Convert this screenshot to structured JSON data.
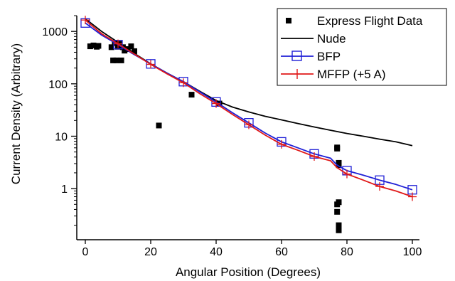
{
  "chart_data": {
    "type": "line",
    "xlabel": "Angular Position (Degrees)",
    "ylabel": "Current Density (Arbitrary)",
    "xlim": [
      0,
      100
    ],
    "ylim": [
      0.14,
      2000
    ],
    "yscale": "log",
    "grid": false,
    "legend_position": "top-right",
    "x_ticks": [
      0,
      20,
      40,
      60,
      80,
      100
    ],
    "x_tick_labels": [
      "0",
      "20",
      "40",
      "60",
      "80",
      "100"
    ],
    "y_ticks": [
      1,
      10,
      100,
      1000
    ],
    "y_tick_labels": [
      "1",
      "10",
      "100",
      "1000"
    ],
    "series": [
      {
        "name": "Express Flight Data",
        "kind": "scatter",
        "marker": "filled-square",
        "color": "#000000",
        "x": [
          1.5,
          2.5,
          3.5,
          4,
          8,
          8.5,
          9,
          9.5,
          10,
          10.5,
          11,
          11.5,
          12,
          13,
          14,
          15,
          22.5,
          32.5,
          41,
          77,
          77,
          77,
          77,
          77.5,
          77.5,
          77.5,
          77.5,
          77.5,
          77.5
        ],
        "y": [
          520,
          540,
          510,
          530,
          500,
          280,
          600,
          280,
          510,
          580,
          280,
          500,
          430,
          460,
          520,
          420,
          16,
          62,
          42,
          6.1,
          5.8,
          0.5,
          0.36,
          0.2,
          0.55,
          0.18,
          0.16,
          2.8,
          3.1
        ]
      },
      {
        "name": "Nude",
        "kind": "line",
        "color": "#000000",
        "x": [
          0,
          5,
          10,
          15,
          20,
          25,
          30,
          35,
          40,
          45,
          50,
          55,
          60,
          65,
          70,
          75,
          80,
          85,
          90,
          95,
          100
        ],
        "y": [
          1750,
          1000,
          620,
          380,
          240,
          160,
          110,
          72,
          48,
          36,
          29,
          24,
          20.5,
          17.5,
          15,
          13,
          11.3,
          10,
          8.8,
          7.8,
          6.6
        ]
      },
      {
        "name": "BFP",
        "kind": "line",
        "marker": "open-square",
        "color": "#1f1fd6",
        "x": [
          0,
          5,
          10,
          15,
          20,
          25,
          30,
          35,
          40,
          45,
          50,
          55,
          60,
          65,
          70,
          75,
          77,
          80,
          85,
          90,
          95,
          100
        ],
        "y": [
          1450,
          850,
          560,
          360,
          240,
          160,
          110,
          70,
          45,
          28,
          18,
          11.5,
          7.8,
          6,
          4.6,
          3.8,
          2.8,
          2.2,
          1.8,
          1.45,
          1.2,
          0.95
        ]
      },
      {
        "name": "MFFP (+5 A)",
        "kind": "line",
        "marker": "plus",
        "color": "#e01818",
        "x": [
          0,
          5,
          10,
          15,
          20,
          25,
          30,
          35,
          40,
          45,
          50,
          55,
          60,
          65,
          70,
          75,
          77,
          80,
          85,
          90,
          95,
          100
        ],
        "y": [
          1650,
          900,
          580,
          370,
          235,
          155,
          105,
          65,
          42,
          26,
          16.5,
          10.5,
          7,
          5.4,
          4.1,
          3.4,
          2.5,
          1.9,
          1.45,
          1.1,
          0.9,
          0.7
        ]
      }
    ]
  }
}
